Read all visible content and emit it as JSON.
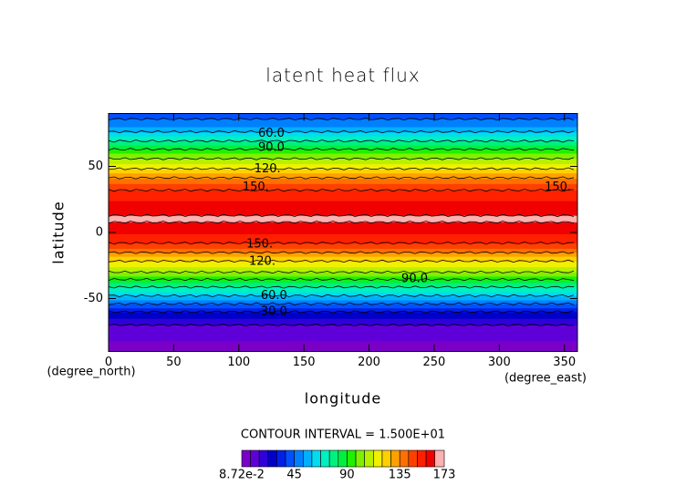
{
  "chart_data": {
    "type": "contour",
    "title": "latent heat flux",
    "xlabel": "longitude",
    "ylabel": "latitude",
    "xunit": "(degree_east)",
    "yunit": "(degree_north)",
    "xlim": [
      0,
      360
    ],
    "ylim": [
      -90,
      90
    ],
    "xticks": [
      0,
      50,
      100,
      150,
      200,
      250,
      300,
      350
    ],
    "yticks": [
      -50,
      0,
      50
    ],
    "latitudes": [
      -90,
      -80,
      -70,
      -60,
      -50,
      -40,
      -30,
      -20,
      -10,
      0,
      10,
      20,
      30,
      40,
      50,
      60,
      70,
      80,
      90
    ],
    "values": [
      5,
      8,
      15,
      30,
      55,
      78,
      105,
      123,
      148,
      158,
      167,
      160,
      153,
      138,
      116,
      97,
      73,
      52,
      40
    ],
    "contour_interval": 15,
    "contour_interval_text": "CONTOUR INTERVAL = 1.500E+01",
    "contour_labels": [
      {
        "value": 60,
        "label": "60.0",
        "x": 125,
        "y": 75
      },
      {
        "value": 90,
        "label": "90.0",
        "x": 125,
        "y": 64
      },
      {
        "value": 120,
        "label": "120.",
        "x": 122,
        "y": 48
      },
      {
        "value": 150,
        "label": "150.",
        "x": 113,
        "y": 34
      },
      {
        "value": 150,
        "label": "150.",
        "x": 345,
        "y": 34
      },
      {
        "value": 150,
        "label": "150.",
        "x": 116,
        "y": -9
      },
      {
        "value": 120,
        "label": "120.",
        "x": 118,
        "y": -22
      },
      {
        "value": 90,
        "label": "90.0",
        "x": 235,
        "y": -35
      },
      {
        "value": 60,
        "label": "60.0",
        "x": 127,
        "y": -48
      },
      {
        "value": 30,
        "label": "30.0",
        "x": 127,
        "y": -60
      }
    ],
    "colorbar": {
      "levels": [
        0.0872,
        7.5,
        15,
        22.5,
        30,
        37.5,
        45,
        52.5,
        60,
        67.5,
        75,
        82.5,
        90,
        97.5,
        105,
        112.5,
        120,
        127.5,
        135,
        142.5,
        150,
        157.5,
        165,
        173
      ],
      "colors": [
        "#7a00c8",
        "#6000d8",
        "#3000d8",
        "#0000c8",
        "#0020e8",
        "#0050ff",
        "#0080ff",
        "#00b0ff",
        "#00dcf0",
        "#00f0c0",
        "#00f080",
        "#00f040",
        "#20f000",
        "#80f000",
        "#b8f000",
        "#f0f000",
        "#ffd000",
        "#ffa000",
        "#ff7000",
        "#ff4000",
        "#ff2000",
        "#f00000",
        "#ffb0b0"
      ],
      "ticks": [
        {
          "value": 0.0872,
          "label": "8.72e-2"
        },
        45,
        90,
        135,
        173
      ]
    }
  }
}
